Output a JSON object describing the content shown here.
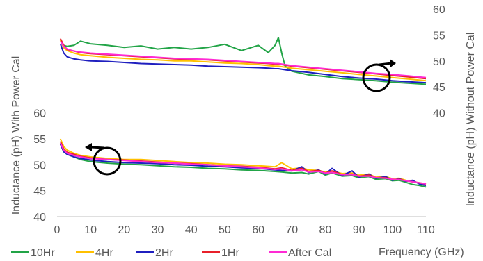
{
  "chart_data": {
    "type": "line",
    "title": "",
    "xlabel": "Frequency (GHz)",
    "ylabel_left": "Inductance (pH) With Power Cal",
    "ylabel_right": "Inductance (pH) Without Power Cal",
    "xlim": [
      0,
      110
    ],
    "x_ticks": [
      "0",
      "10",
      "20",
      "30",
      "40",
      "50",
      "60",
      "70",
      "80",
      "90",
      "100",
      "110"
    ],
    "left_axis": {
      "ylim": [
        40,
        80
      ],
      "ticks": [
        "40",
        "45",
        "50",
        "55",
        "60"
      ],
      "tick_values": [
        40,
        45,
        50,
        55,
        60
      ]
    },
    "right_axis": {
      "ylim": [
        20,
        60
      ],
      "ticks": [
        "40",
        "45",
        "50",
        "55",
        "60"
      ],
      "tick_values": [
        40,
        45,
        50,
        55,
        60
      ]
    },
    "grid": false,
    "legend_position": "bottom",
    "series": [
      {
        "name": "10Hr",
        "color": "#22a447"
      },
      {
        "name": "4Hr",
        "color": "#ffc000"
      },
      {
        "name": "2Hr",
        "color": "#1f1fbf"
      },
      {
        "name": "1Hr",
        "color": "#e8202a"
      },
      {
        "name": "After Cal",
        "color": "#ff2ad4"
      }
    ],
    "groups": [
      {
        "axis": "right",
        "x": [
          1,
          2,
          3,
          5,
          7,
          10,
          15,
          20,
          25,
          30,
          35,
          40,
          45,
          50,
          55,
          60,
          63,
          65,
          66,
          67,
          68,
          70,
          75,
          80,
          85,
          90,
          95,
          100,
          105,
          110
        ],
        "values": [
          [
            54.0,
            53.0,
            52.8,
            53.0,
            53.8,
            53.3,
            53.0,
            52.6,
            52.9,
            52.3,
            52.6,
            52.3,
            52.6,
            53.2,
            52.0,
            53.0,
            51.6,
            53.0,
            54.5,
            51.5,
            49.0,
            48.0,
            47.3,
            47.0,
            46.6,
            46.4,
            46.2,
            45.9,
            45.7,
            45.5
          ],
          [
            54.0,
            52.5,
            52.0,
            51.5,
            51.2,
            51.0,
            50.7,
            50.5,
            50.3,
            50.2,
            50.0,
            50.0,
            49.8,
            49.6,
            49.5,
            49.3,
            49.1,
            49.0,
            49.0,
            48.9,
            48.8,
            48.6,
            48.3,
            48.0,
            47.7,
            47.4,
            47.1,
            46.8,
            46.5,
            46.2
          ],
          [
            53.3,
            51.5,
            50.8,
            50.4,
            50.2,
            50.0,
            49.9,
            49.7,
            49.5,
            49.4,
            49.3,
            49.2,
            49.0,
            48.9,
            48.8,
            48.7,
            48.6,
            48.5,
            48.5,
            48.4,
            48.3,
            48.1,
            47.8,
            47.4,
            47.0,
            46.7,
            46.5,
            46.2,
            46.0,
            45.8
          ],
          [
            54.3,
            53.0,
            52.2,
            51.9,
            51.6,
            51.4,
            51.2,
            51.0,
            50.8,
            50.6,
            50.4,
            50.3,
            50.2,
            50.0,
            49.8,
            49.6,
            49.5,
            49.4,
            49.4,
            49.3,
            49.2,
            49.0,
            48.7,
            48.4,
            48.1,
            47.8,
            47.5,
            47.2,
            46.9,
            46.6
          ],
          [
            53.8,
            52.8,
            52.3,
            51.9,
            51.7,
            51.5,
            51.3,
            51.1,
            50.9,
            50.7,
            50.5,
            50.4,
            50.3,
            50.1,
            49.9,
            49.7,
            49.6,
            49.5,
            49.5,
            49.4,
            49.3,
            49.1,
            48.8,
            48.5,
            48.2,
            47.9,
            47.6,
            47.4,
            47.1,
            46.8
          ]
        ]
      },
      {
        "axis": "left",
        "x": [
          1,
          2,
          3,
          5,
          7,
          10,
          15,
          20,
          25,
          30,
          35,
          40,
          45,
          50,
          55,
          60,
          65,
          67,
          70,
          73,
          75,
          78,
          80,
          82,
          85,
          88,
          90,
          93,
          95,
          98,
          100,
          102,
          104,
          106,
          108,
          110
        ],
        "values": [
          [
            54.0,
            52.5,
            52.0,
            51.5,
            51.0,
            50.6,
            50.3,
            50.1,
            50.0,
            49.8,
            49.6,
            49.5,
            49.3,
            49.2,
            49.0,
            48.9,
            48.7,
            48.6,
            48.4,
            48.5,
            48.2,
            48.7,
            48.0,
            48.4,
            47.8,
            47.9,
            47.5,
            47.7,
            47.2,
            47.3,
            46.9,
            47.0,
            46.6,
            46.2,
            46.0,
            45.7
          ],
          [
            55.0,
            53.5,
            52.8,
            52.2,
            51.8,
            51.5,
            51.2,
            51.0,
            51.0,
            50.8,
            50.6,
            50.4,
            50.3,
            50.1,
            50.0,
            49.8,
            49.6,
            50.4,
            49.2,
            49.4,
            49.0,
            48.9,
            48.6,
            48.8,
            48.3,
            48.4,
            48.0,
            48.2,
            47.6,
            47.7,
            47.3,
            47.4,
            47.0,
            46.7,
            46.5,
            46.2
          ],
          [
            54.0,
            52.5,
            52.0,
            51.5,
            51.2,
            50.9,
            50.6,
            50.4,
            50.3,
            50.2,
            50.0,
            49.9,
            49.7,
            49.6,
            49.4,
            49.3,
            49.0,
            48.9,
            48.8,
            49.6,
            48.5,
            49.0,
            48.2,
            49.3,
            47.9,
            48.8,
            47.6,
            48.2,
            47.4,
            47.7,
            47.0,
            47.3,
            46.8,
            47.0,
            46.3,
            46.0
          ],
          [
            54.5,
            53.0,
            52.4,
            52.0,
            51.6,
            51.3,
            51.0,
            50.9,
            50.7,
            50.5,
            50.3,
            50.2,
            50.0,
            49.8,
            49.7,
            49.5,
            49.2,
            49.4,
            48.9,
            49.3,
            48.7,
            48.9,
            48.4,
            48.8,
            48.1,
            48.2,
            47.8,
            48.0,
            47.5,
            47.5,
            47.1,
            47.2,
            46.9,
            46.7,
            46.5,
            46.3
          ],
          [
            54.2,
            52.8,
            52.2,
            51.8,
            51.5,
            51.2,
            51.0,
            50.8,
            50.6,
            50.4,
            50.3,
            50.1,
            50.0,
            49.8,
            49.6,
            49.4,
            49.1,
            49.2,
            48.8,
            49.0,
            48.6,
            48.7,
            48.4,
            48.5,
            48.1,
            48.1,
            47.8,
            47.8,
            47.5,
            47.4,
            47.2,
            47.1,
            46.9,
            46.7,
            46.5,
            46.3
          ]
        ]
      }
    ]
  }
}
